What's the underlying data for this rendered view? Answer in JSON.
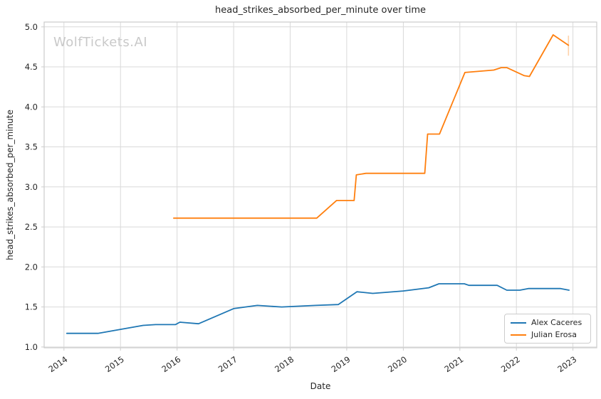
{
  "watermark": {
    "text": "WolfTickets.AI",
    "color": "#c9c9c9"
  },
  "colors": {
    "background": "#ffffff",
    "grid": "#d9d9d9",
    "spine": "#cccccc",
    "tick_mark": "#cccccc",
    "text": "#262626",
    "series_blue": "#1f77b4",
    "series_orange": "#ff7f0e"
  },
  "chart_data": {
    "type": "line",
    "title": "head_strikes_absorbed_per_minute over time",
    "xlabel": "Date",
    "ylabel": "head_strikes_absorbed_per_minute",
    "xlim": [
      2013.65,
      2023.42
    ],
    "ylim": [
      0.99,
      5.06
    ],
    "x_ticks": [
      2014,
      2015,
      2016,
      2017,
      2018,
      2019,
      2020,
      2021,
      2022,
      2023
    ],
    "y_ticks": [
      1.0,
      1.5,
      2.0,
      2.5,
      3.0,
      3.5,
      4.0,
      4.5,
      5.0
    ],
    "grid": true,
    "legend_position": "lower right",
    "series": [
      {
        "name": "Alex Caceres",
        "color": "#1f77b4",
        "points": [
          [
            2014.05,
            1.17
          ],
          [
            2014.6,
            1.17
          ],
          [
            2015.0,
            1.22
          ],
          [
            2015.4,
            1.27
          ],
          [
            2015.62,
            1.28
          ],
          [
            2015.97,
            1.28
          ],
          [
            2016.05,
            1.31
          ],
          [
            2016.38,
            1.29
          ],
          [
            2017.0,
            1.48
          ],
          [
            2017.42,
            1.52
          ],
          [
            2017.85,
            1.5
          ],
          [
            2018.45,
            1.52
          ],
          [
            2018.85,
            1.53
          ],
          [
            2019.18,
            1.69
          ],
          [
            2019.46,
            1.67
          ],
          [
            2020.0,
            1.7
          ],
          [
            2020.45,
            1.74
          ],
          [
            2020.63,
            1.79
          ],
          [
            2021.08,
            1.79
          ],
          [
            2021.16,
            1.77
          ],
          [
            2021.66,
            1.77
          ],
          [
            2021.83,
            1.71
          ],
          [
            2022.06,
            1.71
          ],
          [
            2022.21,
            1.73
          ],
          [
            2022.78,
            1.73
          ],
          [
            2022.93,
            1.71
          ]
        ]
      },
      {
        "name": "Julian Erosa",
        "color": "#ff7f0e",
        "points": [
          [
            2015.94,
            2.61
          ],
          [
            2018.47,
            2.61
          ],
          [
            2018.82,
            2.83
          ],
          [
            2019.13,
            2.83
          ],
          [
            2019.17,
            3.15
          ],
          [
            2019.34,
            3.17
          ],
          [
            2020.38,
            3.17
          ],
          [
            2020.43,
            3.66
          ],
          [
            2020.64,
            3.66
          ],
          [
            2021.09,
            4.43
          ],
          [
            2021.6,
            4.46
          ],
          [
            2021.73,
            4.49
          ],
          [
            2021.83,
            4.49
          ],
          [
            2022.14,
            4.39
          ],
          [
            2022.23,
            4.38
          ],
          [
            2022.65,
            4.9
          ],
          [
            2022.92,
            4.77
          ]
        ],
        "end_marker": {
          "x": 2022.92,
          "y_from": 4.64,
          "y_to": 4.89,
          "opacity": 0.35
        }
      }
    ]
  }
}
